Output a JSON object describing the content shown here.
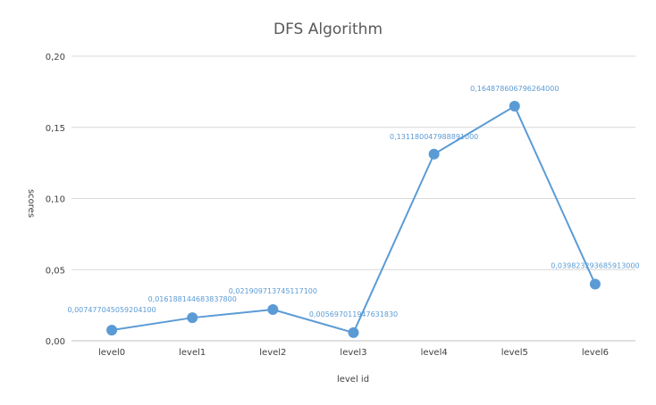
{
  "chart_data": {
    "type": "line",
    "title": "DFS Algorithm",
    "xlabel": "level id",
    "ylabel": "scores",
    "categories": [
      "level0",
      "level1",
      "level2",
      "level3",
      "level4",
      "level5",
      "level6"
    ],
    "series": [
      {
        "values": [
          0.0074770450592041,
          0.0161881446838378,
          0.0219097137451171,
          0.00569701194763183,
          0.131180047988891,
          0.164878606796264,
          0.039823293685913
        ],
        "labels": [
          "0,007477045059204100",
          "0,016188144683837800",
          "0,021909713745117100",
          "0,005697011947631830",
          "0,131180047988891000",
          "0,164878606796264000",
          "0,039823293685913000"
        ],
        "color": "#5b9bd5"
      }
    ],
    "ylim": [
      0,
      0.2
    ],
    "yticks": [
      0,
      0.05,
      0.1,
      0.15,
      0.2
    ],
    "ytick_labels": [
      "0,00",
      "0,05",
      "0,10",
      "0,15",
      "0,20"
    ],
    "grid": true,
    "legend": "none"
  }
}
